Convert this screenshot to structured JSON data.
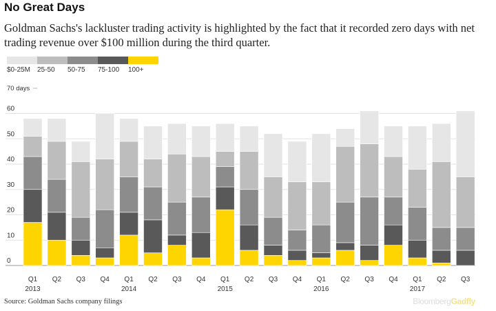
{
  "title": "No Great Days",
  "subtitle": "Goldman Sachs's lackluster trading activity is highlighted by the fact that it recorded zero days with net trading revenue over $100 million during the third quarter.",
  "source": "Source: Goldman Sachs company filings",
  "brand": {
    "part1": "Bloomberg",
    "part2": "Gadfly"
  },
  "legend": [
    {
      "label": "$0-25M",
      "color": "#e6e6e6"
    },
    {
      "label": "25-50",
      "color": "#bdbdbd"
    },
    {
      "label": "50-75",
      "color": "#8c8c8c"
    },
    {
      "label": "75-100",
      "color": "#595959"
    },
    {
      "label": "100+",
      "color": "#ffd500"
    }
  ],
  "chart_data": {
    "type": "bar",
    "stacked": true,
    "unit_label": "70 days",
    "ylim": [
      0,
      70
    ],
    "yticks": [
      0,
      10,
      20,
      30,
      40,
      50,
      60
    ],
    "grid": true,
    "legend_position": "top-left",
    "categories": [
      "Q1 2013",
      "Q2 2013",
      "Q3 2013",
      "Q4 2013",
      "Q1 2014",
      "Q2 2014",
      "Q3 2014",
      "Q4 2014",
      "Q1 2015",
      "Q2 2015",
      "Q3 2015",
      "Q4 2015",
      "Q1 2016",
      "Q2 2016",
      "Q3 2016",
      "Q4 2016",
      "Q1 2017",
      "Q2 2017",
      "Q3 2017"
    ],
    "quarter_labels": [
      "Q1",
      "Q2",
      "Q3",
      "Q4",
      "Q1",
      "Q2",
      "Q3",
      "Q4",
      "Q1",
      "Q2",
      "Q3",
      "Q4",
      "Q1",
      "Q2",
      "Q3",
      "Q4",
      "Q1",
      "Q2",
      "Q3"
    ],
    "year_labels": [
      "2013",
      "",
      "",
      "",
      "2014",
      "",
      "",
      "",
      "2015",
      "",
      "",
      "",
      "2016",
      "",
      "",
      "",
      "2017",
      "",
      ""
    ],
    "series": [
      {
        "name": "100+",
        "color": "#ffd500",
        "values": [
          17,
          10,
          4,
          3,
          12,
          5,
          8,
          3,
          22,
          6,
          4,
          2,
          3,
          6,
          2,
          8,
          3,
          1,
          0
        ]
      },
      {
        "name": "75-100",
        "color": "#595959",
        "values": [
          13,
          11,
          6,
          4,
          9,
          13,
          4,
          10,
          9,
          10,
          4,
          4,
          2,
          3,
          6,
          8,
          7,
          5,
          6
        ]
      },
      {
        "name": "50-75",
        "color": "#8c8c8c",
        "values": [
          13,
          13,
          9,
          15,
          14,
          13,
          13,
          14,
          8,
          14,
          11,
          8,
          11,
          16,
          19,
          11,
          13,
          9,
          9
        ]
      },
      {
        "name": "25-50",
        "color": "#bdbdbd",
        "values": [
          8,
          15,
          22,
          20,
          14,
          11,
          19,
          16,
          6,
          15,
          16,
          19,
          17,
          22,
          21,
          16,
          15,
          26,
          20
        ]
      },
      {
        "name": "$0-25M",
        "color": "#e6e6e6",
        "values": [
          7,
          9,
          8,
          18,
          9,
          13,
          12,
          12,
          11,
          10,
          17,
          16,
          19,
          7,
          13,
          12,
          17,
          15,
          26
        ]
      }
    ]
  }
}
